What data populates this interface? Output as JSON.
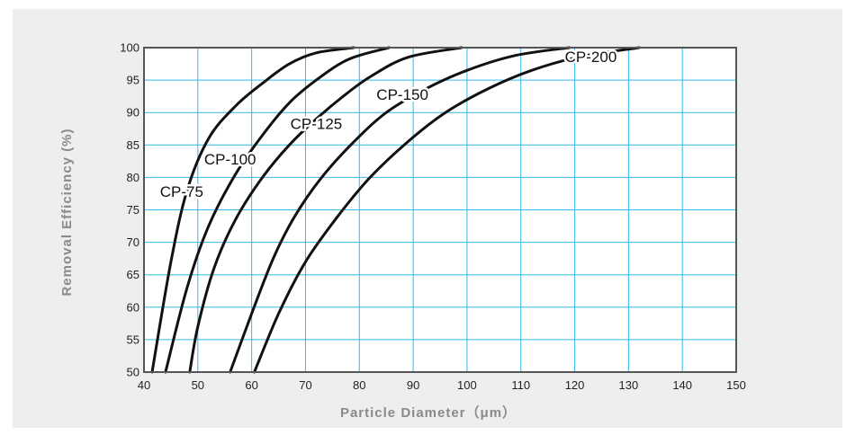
{
  "chart_data": {
    "type": "line",
    "title": "",
    "xlabel": "Particle  Diameter（μm）",
    "ylabel": "Removal Efficiency (%)",
    "xlim": [
      40,
      150
    ],
    "ylim": [
      50,
      100
    ],
    "x_ticks": [
      40,
      50,
      60,
      70,
      80,
      90,
      100,
      110,
      120,
      130,
      140,
      150
    ],
    "y_ticks": [
      50,
      55,
      60,
      65,
      70,
      75,
      80,
      85,
      90,
      95,
      100
    ],
    "grid": true,
    "legend": "none (curves labelled directly)",
    "colors": {
      "grid": "#35b8e8",
      "frame": "#555555",
      "line": "#111111",
      "background": "#eeeeee",
      "plot_area": "#ffffff"
    },
    "series": [
      {
        "name": "CP-75",
        "x": [
          41.5,
          45,
          48,
          52,
          57,
          62,
          67,
          72,
          79
        ],
        "y": [
          50,
          67,
          78,
          86,
          91,
          94.5,
          97.5,
          99.2,
          100
        ]
      },
      {
        "name": "CP-100",
        "x": [
          44,
          48,
          52,
          57,
          62,
          67,
          72,
          78,
          85.5
        ],
        "y": [
          50,
          63,
          72.5,
          80.5,
          86.5,
          91.5,
          95,
          98.2,
          100
        ]
      },
      {
        "name": "CP-125",
        "x": [
          48.5,
          50,
          53,
          57,
          62,
          67,
          72,
          77,
          82,
          89,
          99
        ],
        "y": [
          50,
          57,
          66,
          73.5,
          80,
          85,
          89,
          92.5,
          95.5,
          98.5,
          100
        ]
      },
      {
        "name": "CP-150",
        "x": [
          56,
          60,
          64,
          68,
          73,
          79,
          85,
          92,
          100,
          109,
          119
        ],
        "y": [
          50,
          59,
          67.5,
          74,
          80,
          85.5,
          90,
          93.5,
          96.5,
          98.8,
          100
        ]
      },
      {
        "name": "CP-200",
        "x": [
          60.5,
          65,
          70,
          76,
          82,
          89,
          96,
          104,
          112,
          121,
          132
        ],
        "y": [
          50,
          59,
          67,
          74,
          80,
          85.5,
          90,
          93.7,
          96.5,
          98.6,
          100
        ]
      }
    ],
    "annotations": [
      {
        "text": "CP-75",
        "series": "CP-75",
        "x": 47,
        "y": 77
      },
      {
        "text": "CP-100",
        "series": "CP-100",
        "x": 56,
        "y": 82
      },
      {
        "text": "CP-125",
        "series": "CP-125",
        "x": 72,
        "y": 87.5
      },
      {
        "text": "CP-150",
        "series": "CP-150",
        "x": 88,
        "y": 92
      },
      {
        "text": "CP-200",
        "series": "CP-200",
        "x": 123,
        "y": 97.8
      }
    ]
  }
}
